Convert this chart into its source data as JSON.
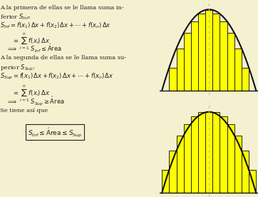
{
  "background_color": "#f5f0d0",
  "bar_color": "#ffff00",
  "bar_edge_color": "#222222",
  "curve_color": "#111111",
  "vline_color": "#c8c8a0",
  "n_bars": 13,
  "x_range": [
    -1.0,
    1.0
  ],
  "curve_amplitude": 1.0,
  "text_color": "#222222",
  "left_text_lines": [
    "A la primera de ellas se le llama suma in-",
    "ferior $S_{Inf}$:",
    "$S_{Inf} = f(x_1)\\,\\Delta x + f(x_2)\\,\\Delta x + \\cdots + f(x_n)\\,\\Delta x$",
    "$= \\displaystyle\\sum_{i=1}^{n} f(x_i)\\,\\Delta x$",
    "$\\Rightarrow \\qquad\\quad S_{Inf} \\leq $ Área",
    "A la segunda de ellas se le llama suma su-",
    "perior $S_{Sup}$:",
    "$S_{Sup} = f(x_1)\\,\\Delta x + f(x_2)\\,\\Delta x + \\cdots + f(x_n)\\,\\Delta x$",
    "$= \\displaystyle\\sum_{i=1}^{n} f(x_i)\\,\\Delta x$",
    "$\\Rightarrow \\qquad\\quad S_{Sup} \\geq $ Área",
    "Se tiene así que",
    "$S_{Inf} \\leq $ Área $\\leq S_{Sup}$"
  ]
}
